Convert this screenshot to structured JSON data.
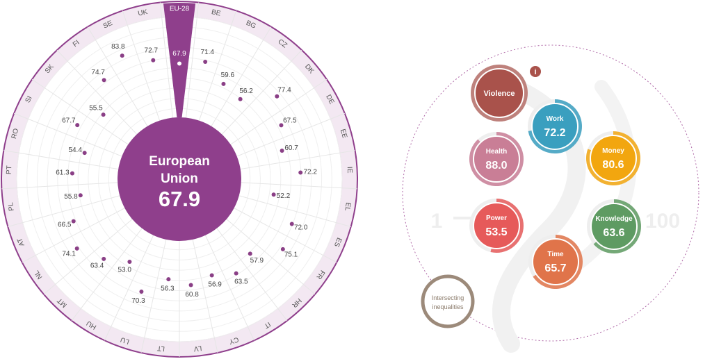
{
  "chart_data": [
    {
      "type": "radial-dot",
      "center": {
        "title_line1": "European",
        "title_line2": "Union",
        "value": "67.9"
      },
      "highlight": "EU-28",
      "scale": [
        0,
        100
      ],
      "points": [
        {
          "code": "EU-28",
          "value": 67.9
        },
        {
          "code": "BE",
          "value": 71.4
        },
        {
          "code": "BG",
          "value": 59.6
        },
        {
          "code": "CZ",
          "value": 56.2
        },
        {
          "code": "DK",
          "value": 77.4
        },
        {
          "code": "DE",
          "value": 67.5
        },
        {
          "code": "EE",
          "value": 60.7
        },
        {
          "code": "IE",
          "value": 72.2
        },
        {
          "code": "EL",
          "value": 52.2
        },
        {
          "code": "ES",
          "value": 72.0
        },
        {
          "code": "FR",
          "value": 75.1
        },
        {
          "code": "HR",
          "value": 57.9
        },
        {
          "code": "IT",
          "value": 63.5
        },
        {
          "code": "CY",
          "value": 56.9
        },
        {
          "code": "LV",
          "value": 60.8
        },
        {
          "code": "LT",
          "value": 56.3
        },
        {
          "code": "LU",
          "value": 70.3
        },
        {
          "code": "HU",
          "value": 53.0
        },
        {
          "code": "MT",
          "value": 63.4
        },
        {
          "code": "NL",
          "value": 74.1
        },
        {
          "code": "AT",
          "value": 66.5
        },
        {
          "code": "PL",
          "value": 55.8
        },
        {
          "code": "PT",
          "value": 61.3
        },
        {
          "code": "RO",
          "value": 54.4
        },
        {
          "code": "SI",
          "value": 67.7
        },
        {
          "code": "SK",
          "value": 55.5
        },
        {
          "code": "FI",
          "value": 74.7
        },
        {
          "code": "SE",
          "value": 83.8
        },
        {
          "code": "UK",
          "value": 72.7
        }
      ]
    },
    {
      "type": "bubble-domains",
      "scale_min_label": "1",
      "scale_max_label": "100",
      "info_icon": "i",
      "domains": [
        {
          "name": "Violence",
          "value": null,
          "color": "#a9524b"
        },
        {
          "name": "Work",
          "value": 72.2,
          "color": "#3a9fbf"
        },
        {
          "name": "Money",
          "value": 80.6,
          "color": "#f2a60f"
        },
        {
          "name": "Knowledge",
          "value": 63.6,
          "color": "#5e9b62"
        },
        {
          "name": "Time",
          "value": 65.7,
          "color": "#e0744a"
        },
        {
          "name": "Power",
          "value": 53.5,
          "color": "#e65a5a"
        },
        {
          "name": "Health",
          "value": 88.0,
          "color": "#c97e96"
        }
      ],
      "extra": {
        "line1": "Intersecting",
        "line2": "inequalities",
        "color": "#9c8a7a"
      }
    }
  ]
}
